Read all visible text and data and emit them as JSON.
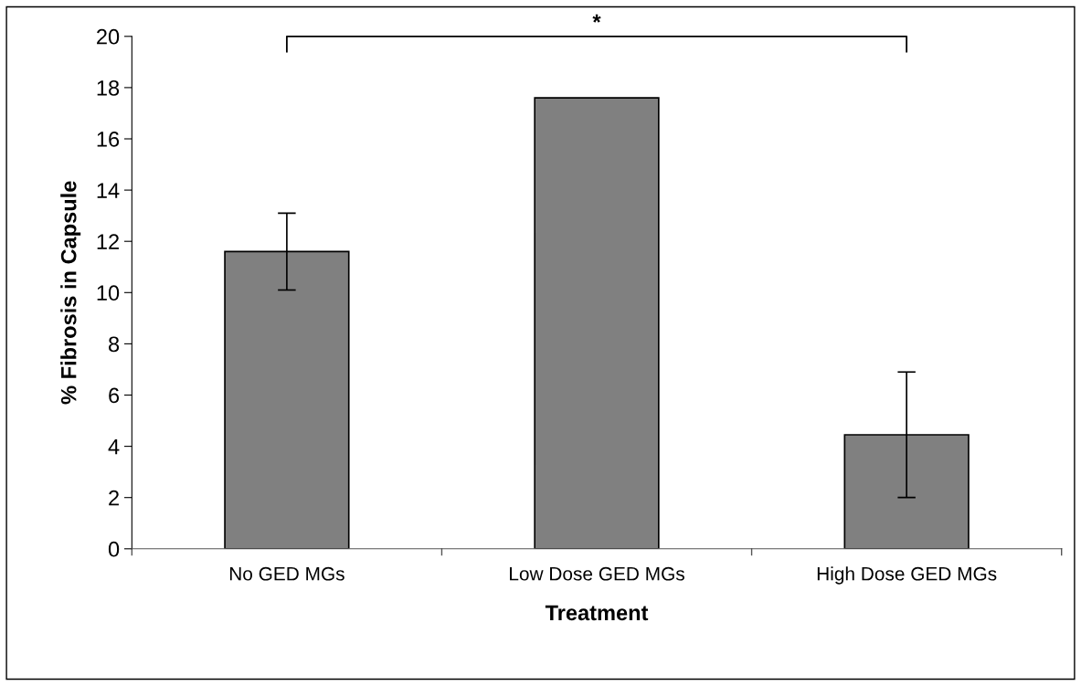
{
  "chart_data": {
    "type": "bar",
    "xlabel": "Treatment",
    "ylabel": "% Fibrosis in Capsule",
    "categories": [
      "No GED MGs",
      "Low Dose GED MGs",
      "High Dose GED MGs"
    ],
    "values": [
      11.6,
      17.6,
      4.45
    ],
    "errors": [
      [
        10.1,
        13.1
      ],
      null,
      [
        2.0,
        6.9
      ]
    ],
    "color": "#808080",
    "ylim": [
      0,
      20
    ],
    "yticks": [
      0,
      2,
      4,
      6,
      8,
      10,
      12,
      14,
      16,
      18,
      20
    ],
    "grid": false,
    "legend": false,
    "annotations": [
      "*"
    ]
  }
}
